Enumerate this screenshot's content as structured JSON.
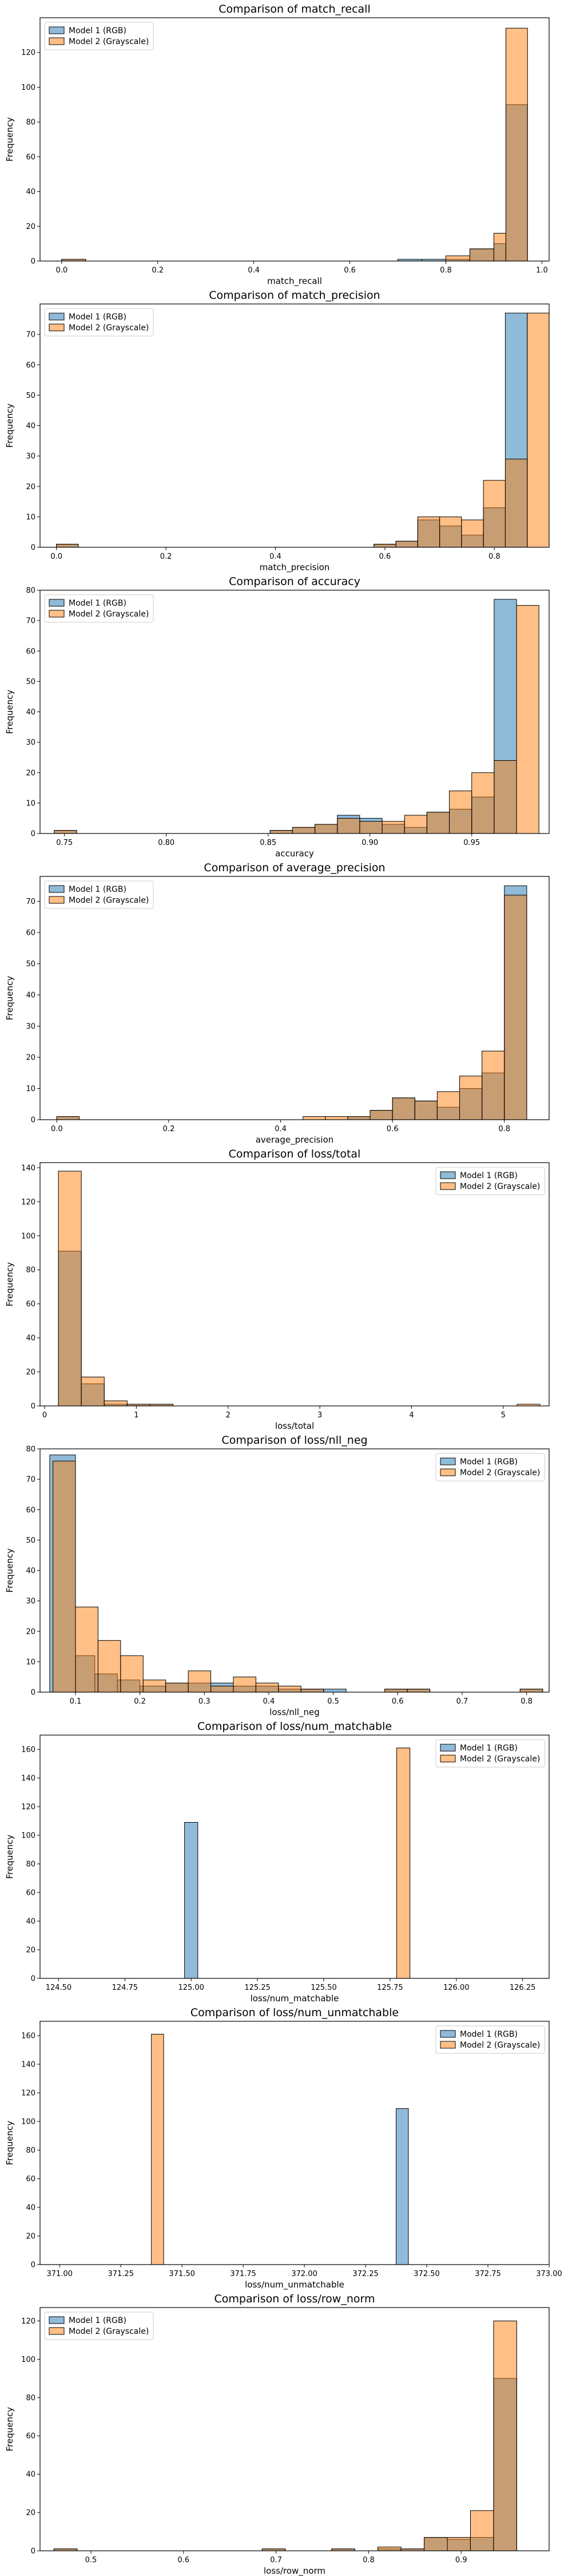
{
  "figure": {
    "background": "#ffffff"
  },
  "colors": {
    "model1_face": "#1f77b4",
    "model2_face": "#ff7f0e",
    "model1_fill_opacity": 0.5,
    "model2_fill_opacity": 0.5,
    "edge": "#000000"
  },
  "legend_labels": [
    "Model 1 (RGB)",
    "Model 2 (Grayscale)"
  ],
  "chart_data": [
    {
      "type": "bar",
      "title": "Comparison of match_recall",
      "xlabel": "match_recall",
      "ylabel": "Frequency",
      "xlim": [
        -0.045,
        1.015
      ],
      "ylim": [
        0,
        140
      ],
      "xticks": [
        "0.0",
        "0.2",
        "0.4",
        "0.6",
        "0.8",
        "1.0"
      ],
      "xtick_values": [
        0.0,
        0.2,
        0.4,
        0.6,
        0.8,
        1.0
      ],
      "yticks": [
        0,
        20,
        40,
        60,
        80,
        100,
        120
      ],
      "legend": "top-left",
      "series": [
        {
          "name": "Model 1 (RGB)",
          "bins": [
            [
              0.0,
              0.05,
              1
            ],
            [
              0.7,
              0.75,
              1
            ],
            [
              0.75,
              0.8,
              1
            ],
            [
              0.8,
              0.85,
              1
            ],
            [
              0.85,
              0.9,
              7
            ],
            [
              0.9,
              0.925,
              10
            ],
            [
              0.925,
              0.97,
              90
            ]
          ]
        },
        {
          "name": "Model 2 (Grayscale)",
          "bins": [
            [
              0.0,
              0.05,
              1
            ],
            [
              0.8,
              0.85,
              3
            ],
            [
              0.85,
              0.9,
              7
            ],
            [
              0.9,
              0.925,
              16
            ],
            [
              0.925,
              0.97,
              134
            ]
          ]
        }
      ]
    },
    {
      "type": "bar",
      "title": "Comparison of match_precision",
      "xlabel": "match_precision",
      "ylabel": "Frequency",
      "xlim": [
        -0.03,
        0.9
      ],
      "ylim": [
        0,
        80
      ],
      "xticks": [
        "0.0",
        "0.2",
        "0.4",
        "0.6",
        "0.8"
      ],
      "xtick_values": [
        0.0,
        0.2,
        0.4,
        0.6,
        0.8
      ],
      "yticks": [
        0,
        10,
        20,
        30,
        40,
        50,
        60,
        70
      ],
      "legend": "top-left",
      "series": [
        {
          "name": "Model 1 (RGB)",
          "bins": [
            [
              0.0,
              0.04,
              1
            ],
            [
              0.58,
              0.62,
              1
            ],
            [
              0.62,
              0.66,
              2
            ],
            [
              0.66,
              0.7,
              9
            ],
            [
              0.7,
              0.74,
              7
            ],
            [
              0.74,
              0.78,
              4
            ],
            [
              0.78,
              0.82,
              13
            ],
            [
              0.82,
              0.86,
              77
            ]
          ]
        },
        {
          "name": "Model 2 (Grayscale)",
          "bins": [
            [
              0.0,
              0.04,
              1
            ],
            [
              0.58,
              0.62,
              1
            ],
            [
              0.62,
              0.66,
              2
            ],
            [
              0.66,
              0.7,
              10
            ],
            [
              0.7,
              0.74,
              10
            ],
            [
              0.74,
              0.78,
              9
            ],
            [
              0.78,
              0.82,
              22
            ],
            [
              0.82,
              0.86,
              29
            ],
            [
              0.86,
              0.9,
              77
            ]
          ]
        }
      ]
    },
    {
      "type": "bar",
      "title": "Comparison of accuracy",
      "xlabel": "accuracy",
      "ylabel": "Frequency",
      "xlim": [
        0.738,
        0.988
      ],
      "ylim": [
        0,
        80
      ],
      "xticks": [
        "0.75",
        "0.80",
        "0.85",
        "0.90",
        "0.95"
      ],
      "xtick_values": [
        0.75,
        0.8,
        0.85,
        0.9,
        0.95
      ],
      "yticks": [
        0,
        10,
        20,
        30,
        40,
        50,
        60,
        70,
        80
      ],
      "legend": "top-left",
      "series": [
        {
          "name": "Model 1 (RGB)",
          "bins": [
            [
              0.745,
              0.756,
              1
            ],
            [
              0.851,
              0.862,
              1
            ],
            [
              0.862,
              0.873,
              2
            ],
            [
              0.873,
              0.884,
              3
            ],
            [
              0.884,
              0.895,
              6
            ],
            [
              0.895,
              0.906,
              5
            ],
            [
              0.906,
              0.917,
              3
            ],
            [
              0.917,
              0.928,
              2
            ],
            [
              0.928,
              0.939,
              7
            ],
            [
              0.939,
              0.95,
              8
            ],
            [
              0.95,
              0.961,
              12
            ],
            [
              0.961,
              0.972,
              77
            ]
          ]
        },
        {
          "name": "Model 2 (Grayscale)",
          "bins": [
            [
              0.745,
              0.756,
              1
            ],
            [
              0.851,
              0.862,
              1
            ],
            [
              0.862,
              0.873,
              2
            ],
            [
              0.873,
              0.884,
              3
            ],
            [
              0.884,
              0.895,
              5
            ],
            [
              0.895,
              0.906,
              4
            ],
            [
              0.906,
              0.917,
              4
            ],
            [
              0.917,
              0.928,
              6
            ],
            [
              0.928,
              0.939,
              7
            ],
            [
              0.939,
              0.95,
              14
            ],
            [
              0.95,
              0.961,
              20
            ],
            [
              0.961,
              0.972,
              24
            ],
            [
              0.972,
              0.983,
              75
            ]
          ]
        }
      ]
    },
    {
      "type": "bar",
      "title": "Comparison of average_precision",
      "xlabel": "average_precision",
      "ylabel": "Frequency",
      "xlim": [
        -0.03,
        0.88
      ],
      "ylim": [
        0,
        78
      ],
      "xticks": [
        "0.0",
        "0.2",
        "0.4",
        "0.6",
        "0.8"
      ],
      "xtick_values": [
        0.0,
        0.2,
        0.4,
        0.6,
        0.8
      ],
      "yticks": [
        0,
        10,
        20,
        30,
        40,
        50,
        60,
        70
      ],
      "legend": "top-left",
      "series": [
        {
          "name": "Model 1 (RGB)",
          "bins": [
            [
              0.0,
              0.04,
              1
            ],
            [
              0.52,
              0.56,
              1
            ],
            [
              0.56,
              0.6,
              3
            ],
            [
              0.6,
              0.64,
              7
            ],
            [
              0.64,
              0.68,
              6
            ],
            [
              0.68,
              0.72,
              4
            ],
            [
              0.72,
              0.76,
              10
            ],
            [
              0.76,
              0.8,
              15
            ],
            [
              0.8,
              0.84,
              75
            ]
          ]
        },
        {
          "name": "Model 2 (Grayscale)",
          "bins": [
            [
              0.0,
              0.04,
              1
            ],
            [
              0.44,
              0.48,
              1
            ],
            [
              0.48,
              0.52,
              1
            ],
            [
              0.52,
              0.56,
              1
            ],
            [
              0.56,
              0.6,
              3
            ],
            [
              0.6,
              0.64,
              7
            ],
            [
              0.64,
              0.68,
              6
            ],
            [
              0.68,
              0.72,
              9
            ],
            [
              0.72,
              0.76,
              14
            ],
            [
              0.76,
              0.8,
              22
            ],
            [
              0.8,
              0.84,
              72
            ]
          ]
        }
      ]
    },
    {
      "type": "bar",
      "title": "Comparison of loss/total",
      "xlabel": "loss/total",
      "ylabel": "Frequency",
      "xlim": [
        -0.05,
        5.5
      ],
      "ylim": [
        0,
        143
      ],
      "xticks": [
        "0",
        "1",
        "2",
        "3",
        "4",
        "5"
      ],
      "xtick_values": [
        0,
        1,
        2,
        3,
        4,
        5
      ],
      "yticks": [
        0,
        20,
        40,
        60,
        80,
        100,
        120,
        140
      ],
      "legend": "top-right",
      "series": [
        {
          "name": "Model 1 (RGB)",
          "bins": [
            [
              0.15,
              0.4,
              91
            ],
            [
              0.4,
              0.65,
              13
            ],
            [
              0.65,
              0.9,
              1
            ],
            [
              0.9,
              1.15,
              1
            ],
            [
              1.15,
              1.4,
              1
            ]
          ]
        },
        {
          "name": "Model 2 (Grayscale)",
          "bins": [
            [
              0.15,
              0.4,
              138
            ],
            [
              0.4,
              0.65,
              17
            ],
            [
              0.65,
              0.9,
              3
            ],
            [
              0.9,
              1.15,
              1
            ],
            [
              1.15,
              1.4,
              1
            ],
            [
              5.15,
              5.4,
              1
            ]
          ]
        }
      ]
    },
    {
      "type": "bar",
      "title": "Comparison of loss/nll_neg",
      "xlabel": "loss/nll_neg",
      "ylabel": "Frequency",
      "xlim": [
        0.045,
        0.835
      ],
      "ylim": [
        0,
        80
      ],
      "xticks": [
        "0.1",
        "0.2",
        "0.3",
        "0.4",
        "0.5",
        "0.6",
        "0.7",
        "0.8"
      ],
      "xtick_values": [
        0.1,
        0.2,
        0.3,
        0.4,
        0.5,
        0.6,
        0.7,
        0.8
      ],
      "yticks": [
        0,
        10,
        20,
        30,
        40,
        50,
        60,
        70,
        80
      ],
      "legend": "top-right",
      "series": [
        {
          "name": "Model 1 (RGB)",
          "bins": [
            [
              0.06,
              0.1,
              78
            ],
            [
              0.1,
              0.13,
              12
            ],
            [
              0.13,
              0.165,
              6
            ],
            [
              0.165,
              0.2,
              4
            ],
            [
              0.2,
              0.24,
              2
            ],
            [
              0.24,
              0.275,
              3
            ],
            [
              0.275,
              0.31,
              3
            ],
            [
              0.31,
              0.345,
              3
            ],
            [
              0.345,
              0.38,
              2
            ],
            [
              0.38,
              0.415,
              2
            ],
            [
              0.415,
              0.45,
              1
            ],
            [
              0.45,
              0.485,
              1
            ],
            [
              0.485,
              0.52,
              1
            ],
            [
              0.58,
              0.615,
              1
            ],
            [
              0.615,
              0.65,
              1
            ],
            [
              0.79,
              0.825,
              1
            ]
          ]
        },
        {
          "name": "Model 2 (Grayscale)",
          "bins": [
            [
              0.065,
              0.1,
              76
            ],
            [
              0.1,
              0.135,
              28
            ],
            [
              0.135,
              0.17,
              17
            ],
            [
              0.17,
              0.205,
              12
            ],
            [
              0.205,
              0.24,
              4
            ],
            [
              0.24,
              0.275,
              3
            ],
            [
              0.275,
              0.31,
              7
            ],
            [
              0.31,
              0.345,
              2
            ],
            [
              0.345,
              0.38,
              5
            ],
            [
              0.38,
              0.415,
              3
            ],
            [
              0.415,
              0.45,
              2
            ],
            [
              0.45,
              0.485,
              1
            ],
            [
              0.58,
              0.615,
              1
            ],
            [
              0.615,
              0.65,
              1
            ],
            [
              0.79,
              0.825,
              1
            ]
          ]
        }
      ]
    },
    {
      "type": "bar",
      "title": "Comparison of loss/num_matchable",
      "xlabel": "loss/num_matchable",
      "ylabel": "Frequency",
      "xlim": [
        124.43,
        126.35
      ],
      "ylim": [
        0,
        170
      ],
      "xticks": [
        "124.50",
        "124.75",
        "125.00",
        "125.25",
        "125.50",
        "125.75",
        "126.00",
        "126.25"
      ],
      "xtick_values": [
        124.5,
        124.75,
        125.0,
        125.25,
        125.5,
        125.75,
        126.0,
        126.25
      ],
      "yticks": [
        0,
        20,
        40,
        60,
        80,
        100,
        120,
        140,
        160
      ],
      "legend": "top-right",
      "series": [
        {
          "name": "Model 1 (RGB)",
          "bins": [
            [
              124.975,
              125.025,
              109
            ]
          ]
        },
        {
          "name": "Model 2 (Grayscale)",
          "bins": [
            [
              125.775,
              125.825,
              161
            ]
          ]
        }
      ]
    },
    {
      "type": "bar",
      "title": "Comparison of loss/num_unmatchable",
      "xlabel": "loss/num_unmatchable",
      "ylabel": "Frequency",
      "xlim": [
        370.92,
        373.0
      ],
      "ylim": [
        0,
        170
      ],
      "xticks": [
        "371.00",
        "371.25",
        "371.50",
        "371.75",
        "372.00",
        "372.25",
        "372.50",
        "372.75",
        "373.00"
      ],
      "xtick_values": [
        371.0,
        371.25,
        371.5,
        371.75,
        372.0,
        372.25,
        372.5,
        372.75,
        373.0
      ],
      "yticks": [
        0,
        20,
        40,
        60,
        80,
        100,
        120,
        140,
        160
      ],
      "legend": "top-right",
      "series": [
        {
          "name": "Model 1 (RGB)",
          "bins": [
            [
              372.375,
              372.425,
              109
            ]
          ]
        },
        {
          "name": "Model 2 (Grayscale)",
          "bins": [
            [
              371.375,
              371.425,
              161
            ]
          ]
        }
      ]
    },
    {
      "type": "bar",
      "title": "Comparison of loss/row_norm",
      "xlabel": "loss/row_norm",
      "ylabel": "Frequency",
      "xlim": [
        0.445,
        0.995
      ],
      "ylim": [
        0,
        127
      ],
      "xticks": [
        "0.5",
        "0.6",
        "0.7",
        "0.8",
        "0.9"
      ],
      "xtick_values": [
        0.5,
        0.6,
        0.7,
        0.8,
        0.9
      ],
      "yticks": [
        0,
        20,
        40,
        60,
        80,
        100,
        120
      ],
      "legend": "top-left",
      "series": [
        {
          "name": "Model 1 (RGB)",
          "bins": [
            [
              0.46,
              0.485,
              1
            ],
            [
              0.685,
              0.71,
              1
            ],
            [
              0.76,
              0.785,
              1
            ],
            [
              0.81,
              0.835,
              1
            ],
            [
              0.835,
              0.86,
              1
            ],
            [
              0.86,
              0.885,
              7
            ],
            [
              0.885,
              0.91,
              6
            ],
            [
              0.91,
              0.935,
              7
            ],
            [
              0.935,
              0.96,
              90
            ]
          ]
        },
        {
          "name": "Model 2 (Grayscale)",
          "bins": [
            [
              0.46,
              0.485,
              1
            ],
            [
              0.685,
              0.71,
              1
            ],
            [
              0.76,
              0.785,
              1
            ],
            [
              0.81,
              0.835,
              2
            ],
            [
              0.835,
              0.86,
              1
            ],
            [
              0.86,
              0.885,
              7
            ],
            [
              0.885,
              0.91,
              7
            ],
            [
              0.91,
              0.935,
              21
            ],
            [
              0.935,
              0.96,
              120
            ]
          ]
        }
      ]
    }
  ]
}
